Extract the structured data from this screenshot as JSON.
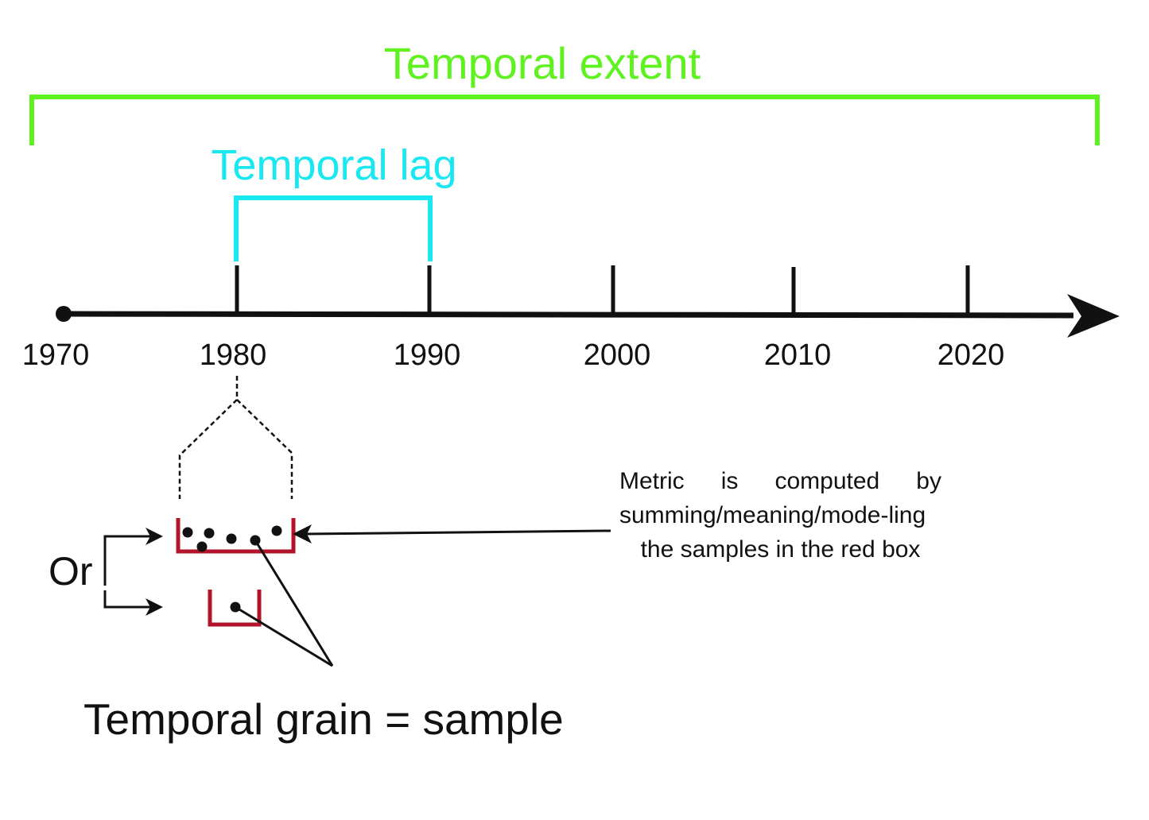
{
  "title_extent": "Temporal extent",
  "title_lag": "Temporal lag",
  "years": [
    "1970",
    "1980",
    "1990",
    "2000",
    "2010",
    "2020"
  ],
  "or_label": "Or",
  "note": "Metric is computed by summing/meaning/mode-ling the samples in the red box",
  "grain_label": "Temporal grain = sample",
  "colors": {
    "extent": "#5ef21f",
    "lag": "#19e8f2",
    "axis": "#111111",
    "sample_box": "#b4142a"
  }
}
